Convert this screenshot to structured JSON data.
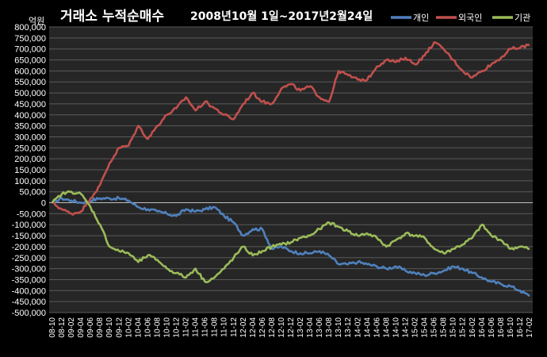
{
  "chart_data": {
    "type": "line",
    "title": "거래소 누적순매수",
    "subtitle": "2008년10월 1일~2017년2월24일",
    "unit_label": "억원",
    "ylim": [
      -500000,
      800000
    ],
    "yticks": [
      800000,
      750000,
      700000,
      650000,
      600000,
      550000,
      500000,
      450000,
      400000,
      350000,
      300000,
      250000,
      200000,
      150000,
      100000,
      50000,
      0,
      -50000,
      -100000,
      -150000,
      -200000,
      -250000,
      -300000,
      -350000,
      -400000,
      -450000,
      -500000
    ],
    "ytick_labels": [
      "800,000",
      "750,000",
      "700,000",
      "650,000",
      "600,000",
      "550,000",
      "500,000",
      "450,000",
      "400,000",
      "350,000",
      "300,000",
      "250,000",
      "200,000",
      "150,000",
      "100,000",
      "50,000",
      "0",
      "-50,000",
      "-100,000",
      "-150,000",
      "-200,000",
      "-250,000",
      "-300,000",
      "-350,000",
      "-400,000",
      "-450,000",
      "-500,000"
    ],
    "categories": [
      "08-10",
      "08-12",
      "09-02",
      "09-04",
      "09-06",
      "09-08",
      "09-10",
      "09-12",
      "10-02",
      "10-04",
      "10-06",
      "10-08",
      "10-10",
      "10-12",
      "11-02",
      "11-04",
      "11-06",
      "11-08",
      "11-10",
      "11-12",
      "12-02",
      "12-04",
      "12-06",
      "12-08",
      "12-10",
      "12-12",
      "13-02",
      "13-04",
      "13-06",
      "13-08",
      "13-10",
      "13-12",
      "14-02",
      "14-04",
      "14-06",
      "14-08",
      "14-10",
      "14-12",
      "15-02",
      "15-04",
      "15-06",
      "15-08",
      "15-10",
      "15-12",
      "16-02",
      "16-04",
      "16-06",
      "16-08",
      "16-10",
      "16-12",
      "17-02"
    ],
    "grid": true,
    "legend_position": "top-right",
    "series": [
      {
        "name": "개인",
        "color": "#4f81bd",
        "values": [
          0,
          20000,
          10000,
          0,
          10000,
          20000,
          20000,
          20000,
          10000,
          -20000,
          -30000,
          -40000,
          -50000,
          -60000,
          -30000,
          -40000,
          -30000,
          -20000,
          -60000,
          -90000,
          -150000,
          -120000,
          -120000,
          -210000,
          -200000,
          -220000,
          -230000,
          -230000,
          -220000,
          -240000,
          -280000,
          -280000,
          -270000,
          -280000,
          -290000,
          -300000,
          -290000,
          -310000,
          -320000,
          -330000,
          -320000,
          -310000,
          -290000,
          -300000,
          -320000,
          -340000,
          -360000,
          -370000,
          -380000,
          -400000,
          -425000
        ]
      },
      {
        "name": "외국인",
        "color": "#c0504d",
        "values": [
          0,
          -30000,
          -50000,
          -40000,
          20000,
          80000,
          180000,
          250000,
          260000,
          350000,
          290000,
          350000,
          400000,
          430000,
          480000,
          420000,
          460000,
          430000,
          400000,
          380000,
          450000,
          500000,
          460000,
          450000,
          520000,
          540000,
          510000,
          530000,
          480000,
          460000,
          600000,
          580000,
          560000,
          560000,
          620000,
          650000,
          640000,
          660000,
          630000,
          670000,
          730000,
          700000,
          650000,
          600000,
          570000,
          600000,
          630000,
          660000,
          700000,
          705000,
          720000
        ]
      },
      {
        "name": "기관",
        "color": "#9bbb59",
        "values": [
          0,
          40000,
          50000,
          40000,
          -20000,
          -100000,
          -200000,
          -220000,
          -230000,
          -270000,
          -240000,
          -260000,
          -300000,
          -320000,
          -340000,
          -300000,
          -360000,
          -340000,
          -300000,
          -250000,
          -200000,
          -240000,
          -220000,
          -200000,
          -190000,
          -180000,
          -160000,
          -150000,
          -120000,
          -90000,
          -110000,
          -130000,
          -150000,
          -140000,
          -160000,
          -200000,
          -170000,
          -140000,
          -150000,
          -160000,
          -210000,
          -230000,
          -210000,
          -190000,
          -160000,
          -100000,
          -150000,
          -170000,
          -210000,
          -200000,
          -210000
        ]
      }
    ]
  }
}
